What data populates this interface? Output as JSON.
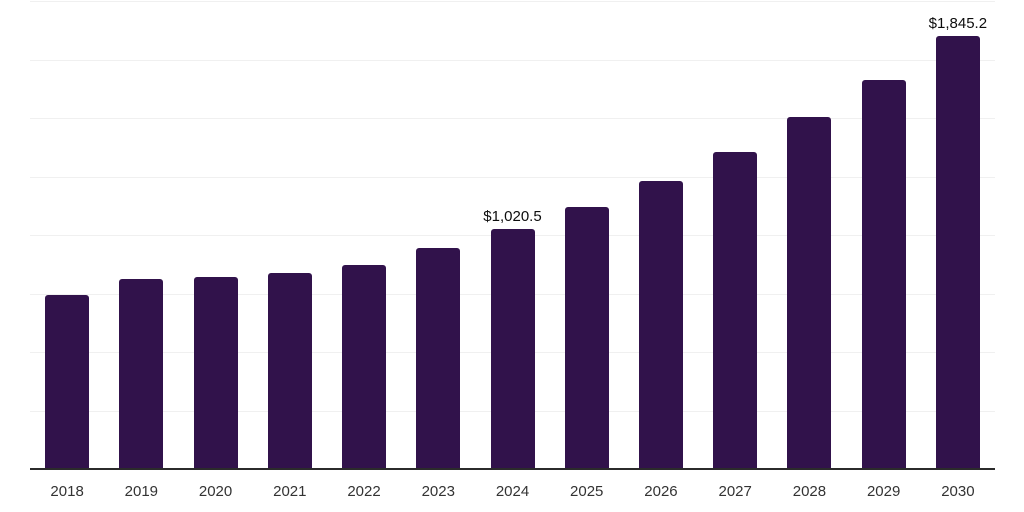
{
  "chart_data": {
    "type": "bar",
    "title": "",
    "xlabel": "",
    "ylabel": "",
    "categories": [
      "2018",
      "2019",
      "2020",
      "2021",
      "2022",
      "2023",
      "2024",
      "2025",
      "2026",
      "2027",
      "2028",
      "2029",
      "2030"
    ],
    "values": [
      739.3,
      807.7,
      816.2,
      833.3,
      867.5,
      940.2,
      1020.5,
      1115.4,
      1226.5,
      1350.4,
      1500.0,
      1658.1,
      1845.2
    ],
    "point_labels": [
      null,
      null,
      null,
      null,
      null,
      null,
      "$1,020.5",
      null,
      null,
      null,
      null,
      null,
      "$1,845.2"
    ],
    "ylim": [
      0,
      2000
    ],
    "grid_step": 250,
    "grid": true,
    "legend_position": "none",
    "y_axis_tick_labels_visible": false,
    "colors": {
      "bar": "#31124B",
      "grid": "#F0F0F0",
      "axis": "#2B2B2B",
      "tick_label": "#333333",
      "data_label": "#0D0D0D",
      "background": "#FFFFFF"
    }
  }
}
